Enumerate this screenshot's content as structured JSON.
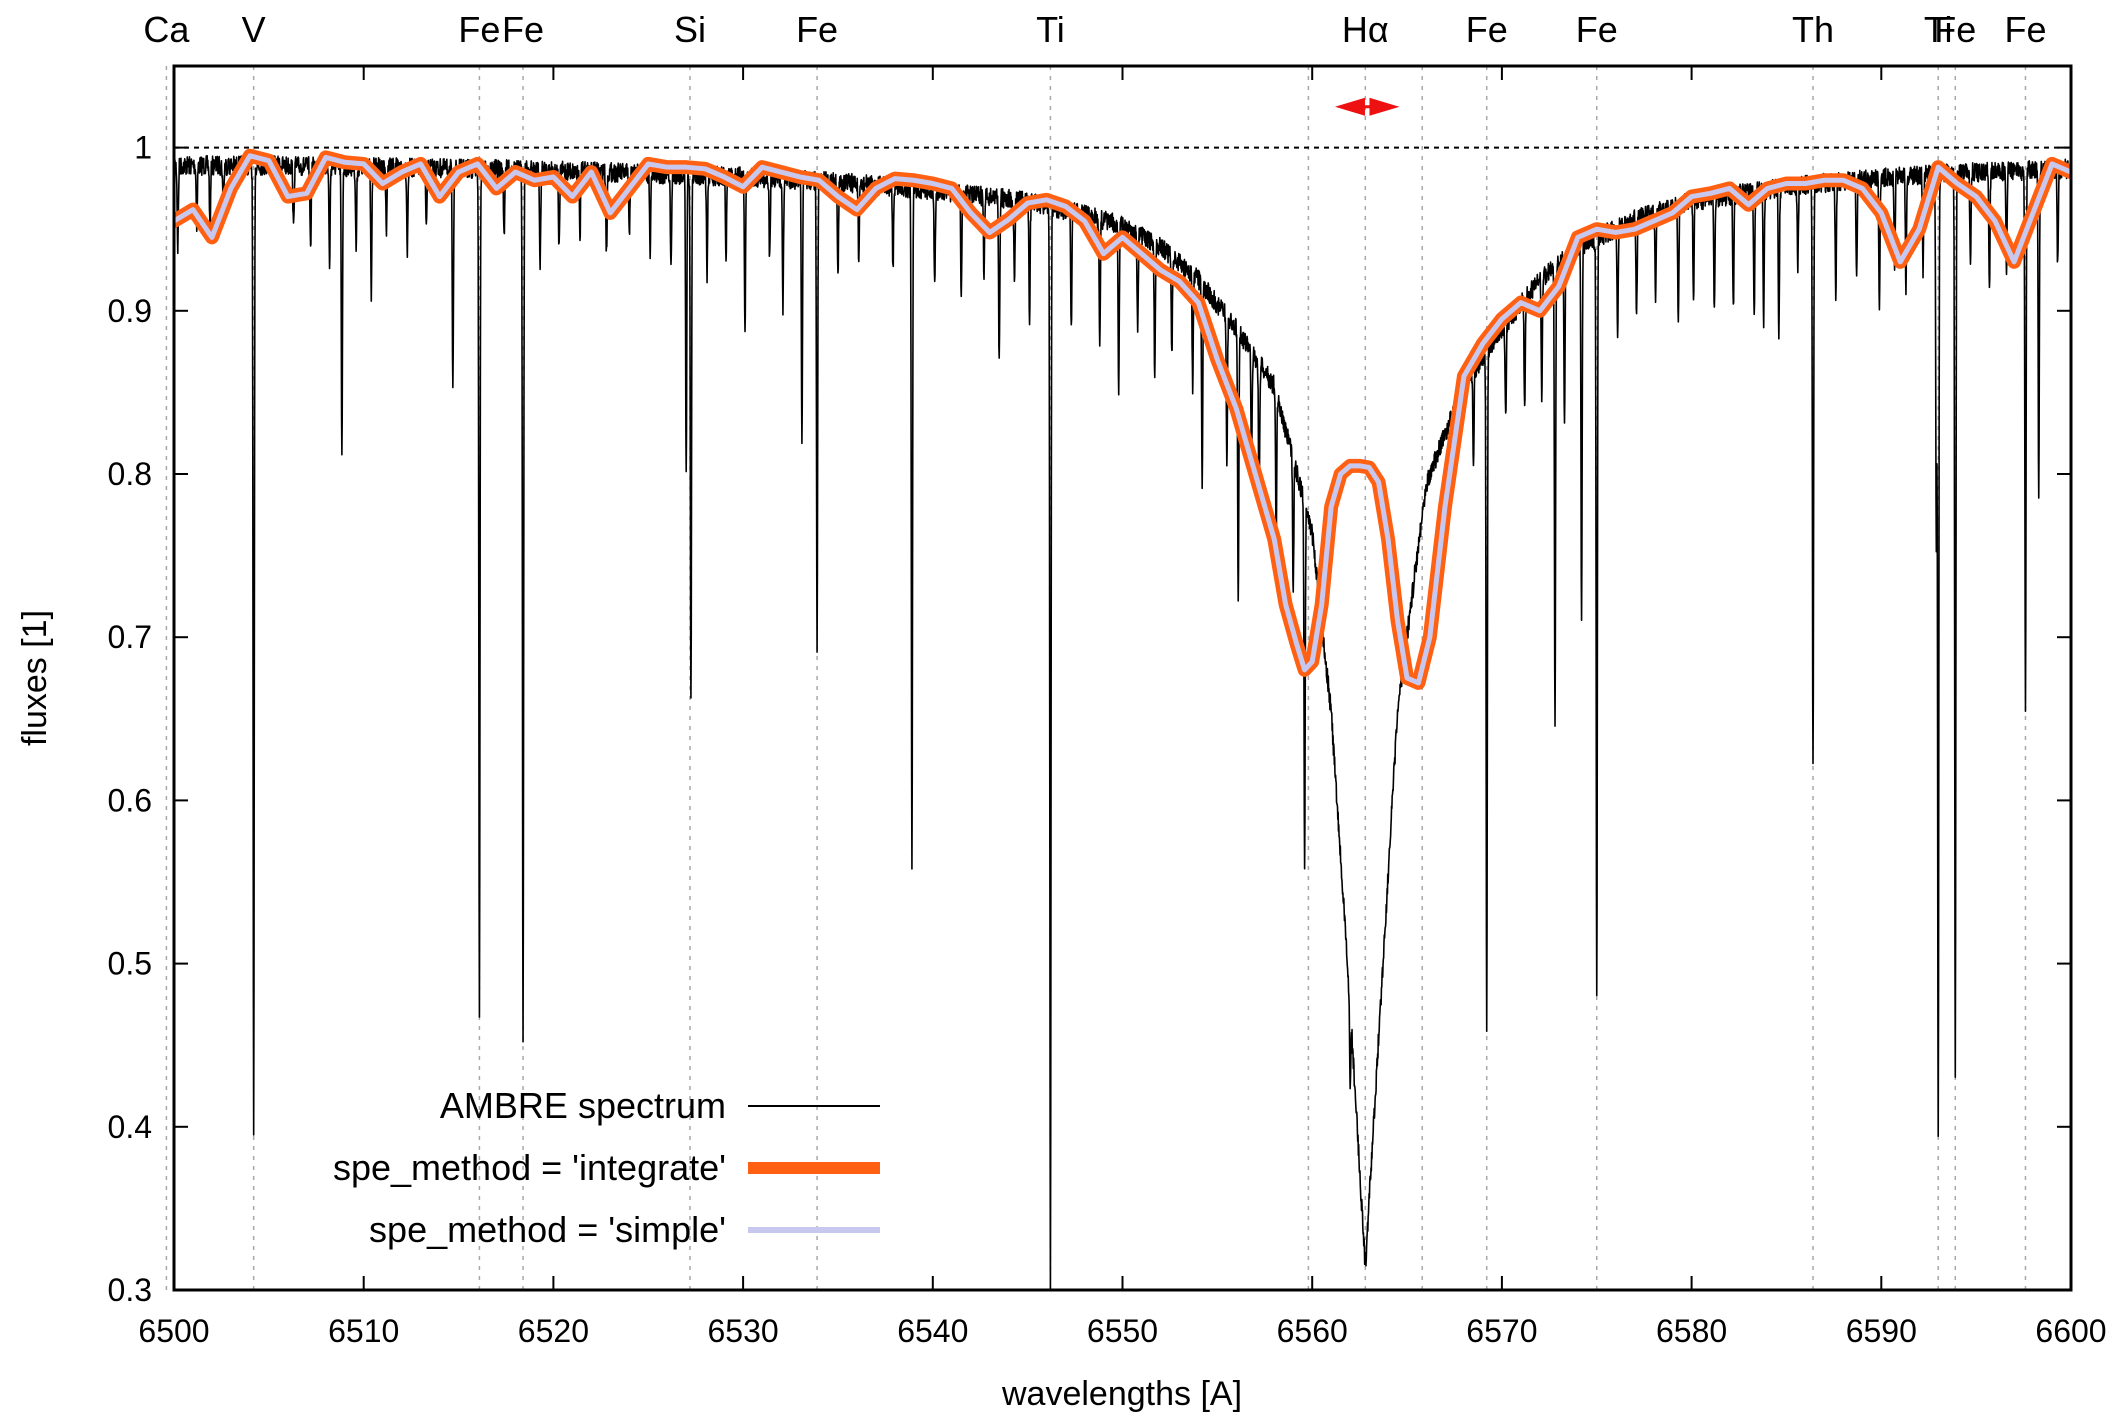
{
  "chart_data": {
    "type": "line",
    "xlabel": "wavelengths [A]",
    "ylabel": "fluxes [1]",
    "xlim": [
      6500,
      6600
    ],
    "ylim": [
      0.3,
      1.05
    ],
    "x_ticks": [
      "6500",
      "6510",
      "6520",
      "6530",
      "6540",
      "6550",
      "6560",
      "6570",
      "6580",
      "6590",
      "6600"
    ],
    "y_ticks": [
      "0.3",
      "0.4",
      "0.5",
      "0.6",
      "0.7",
      "0.8",
      "0.9",
      "1"
    ],
    "continuum_level": 1.0,
    "legend_position": "bottom-left",
    "element_lines": [
      {
        "label": "Ca",
        "wavelength": 6499.6
      },
      {
        "label": "V",
        "wavelength": 6504.2
      },
      {
        "label": "Fe",
        "wavelength": 6516.1
      },
      {
        "label": "Fe",
        "wavelength": 6518.4
      },
      {
        "label": "Si",
        "wavelength": 6527.2
      },
      {
        "label": "Fe",
        "wavelength": 6533.9
      },
      {
        "label": "Ti",
        "wavelength": 6546.2
      },
      {
        "label": "Hα",
        "wavelength": 6562.8
      },
      {
        "label": "Fe",
        "wavelength": 6569.2
      },
      {
        "label": "Fe",
        "wavelength": 6575.0
      },
      {
        "label": "Th",
        "wavelength": 6586.4
      },
      {
        "label": "Ti",
        "wavelength": 6593.0
      },
      {
        "label": "Fe",
        "wavelength": 6593.9
      },
      {
        "label": "Fe",
        "wavelength": 6597.6
      }
    ],
    "extra_guides": [
      6559.8,
      6565.8
    ],
    "annotation_arrow": {
      "from": 6561.2,
      "to": 6564.6,
      "y": 1.025,
      "color": "#ee1111"
    },
    "series": [
      {
        "name": "AMBRE spectrum",
        "color": "#000000",
        "wing_width": 19,
        "x": [
          6500,
          6505,
          6510,
          6515,
          6520,
          6525,
          6530,
          6535,
          6540,
          6545,
          6548,
          6550,
          6552,
          6554,
          6556,
          6558,
          6560,
          6561,
          6562,
          6562.8,
          6563.5,
          6564.5,
          6566,
          6568,
          6570,
          6572,
          6574,
          6577,
          6580,
          6585,
          6590,
          6595,
          6600
        ],
        "y": [
          0.995,
          0.995,
          0.994,
          0.993,
          0.992,
          0.99,
          0.988,
          0.985,
          0.98,
          0.973,
          0.965,
          0.958,
          0.945,
          0.925,
          0.895,
          0.86,
          0.77,
          0.66,
          0.48,
          0.32,
          0.46,
          0.66,
          0.8,
          0.86,
          0.895,
          0.925,
          0.945,
          0.962,
          0.973,
          0.982,
          0.988,
          0.991,
          0.993
        ],
        "absorption_lines": [
          [
            6500.2,
            0.05
          ],
          [
            6501.2,
            0.035
          ],
          [
            6501.9,
            0.04
          ],
          [
            6502.6,
            0.03
          ],
          [
            6504.2,
            0.595
          ],
          [
            6506.3,
            0.04
          ],
          [
            6507.2,
            0.05
          ],
          [
            6508.2,
            0.06
          ],
          [
            6508.85,
            0.18
          ],
          [
            6509.6,
            0.05
          ],
          [
            6510.4,
            0.08
          ],
          [
            6511.2,
            0.04
          ],
          [
            6512.3,
            0.05
          ],
          [
            6513.3,
            0.04
          ],
          [
            6514.7,
            0.14
          ],
          [
            6516.1,
            0.515
          ],
          [
            6517.4,
            0.04
          ],
          [
            6518.4,
            0.53
          ],
          [
            6519.3,
            0.06
          ],
          [
            6520.3,
            0.05
          ],
          [
            6521.4,
            0.04
          ],
          [
            6522.8,
            0.05
          ],
          [
            6524.0,
            0.04
          ],
          [
            6525.1,
            0.05
          ],
          [
            6526.2,
            0.06
          ],
          [
            6527.0,
            0.18
          ],
          [
            6527.25,
            0.325
          ],
          [
            6528.1,
            0.06
          ],
          [
            6529.1,
            0.05
          ],
          [
            6530.1,
            0.095
          ],
          [
            6531.4,
            0.05
          ],
          [
            6532.1,
            0.08
          ],
          [
            6533.1,
            0.16
          ],
          [
            6533.9,
            0.285
          ],
          [
            6535.0,
            0.06
          ],
          [
            6536.1,
            0.05
          ],
          [
            6537.9,
            0.05
          ],
          [
            6538.9,
            0.415
          ],
          [
            6540.1,
            0.06
          ],
          [
            6541.5,
            0.06
          ],
          [
            6542.7,
            0.05
          ],
          [
            6543.5,
            0.1
          ],
          [
            6544.3,
            0.05
          ],
          [
            6545.1,
            0.07
          ],
          [
            6546.2,
            0.66
          ],
          [
            6547.3,
            0.07
          ],
          [
            6548.8,
            0.08
          ],
          [
            6549.8,
            0.1
          ],
          [
            6550.8,
            0.06
          ],
          [
            6551.7,
            0.08
          ],
          [
            6552.6,
            0.06
          ],
          [
            6553.7,
            0.07
          ],
          [
            6554.2,
            0.12
          ],
          [
            6555.5,
            0.09
          ],
          [
            6556.1,
            0.17
          ],
          [
            6556.8,
            0.07
          ],
          [
            6557.2,
            0.09
          ],
          [
            6558.1,
            0.09
          ],
          [
            6559.0,
            0.08
          ],
          [
            6559.6,
            0.22
          ],
          [
            6562.0,
            0.05
          ],
          [
            6567.5,
            0.05
          ],
          [
            6568.5,
            0.06
          ],
          [
            6569.2,
            0.42
          ],
          [
            6570.2,
            0.06
          ],
          [
            6571.2,
            0.07
          ],
          [
            6572.1,
            0.07
          ],
          [
            6572.8,
            0.28
          ],
          [
            6573.3,
            0.1
          ],
          [
            6574.2,
            0.23
          ],
          [
            6575.0,
            0.47
          ],
          [
            6576.1,
            0.07
          ],
          [
            6577.1,
            0.06
          ],
          [
            6578.1,
            0.05
          ],
          [
            6579.3,
            0.07
          ],
          [
            6580.1,
            0.06
          ],
          [
            6581.2,
            0.07
          ],
          [
            6582.2,
            0.07
          ],
          [
            6583.3,
            0.08
          ],
          [
            6583.8,
            0.08
          ],
          [
            6584.6,
            0.09
          ],
          [
            6585.6,
            0.05
          ],
          [
            6586.4,
            0.36
          ],
          [
            6587.6,
            0.07
          ],
          [
            6588.7,
            0.06
          ],
          [
            6589.9,
            0.08
          ],
          [
            6590.7,
            0.06
          ],
          [
            6591.3,
            0.07
          ],
          [
            6592.2,
            0.06
          ],
          [
            6592.9,
            0.23
          ],
          [
            6593.0,
            0.59
          ],
          [
            6593.9,
            0.55
          ],
          [
            6594.7,
            0.06
          ],
          [
            6595.7,
            0.07
          ],
          [
            6596.6,
            0.06
          ],
          [
            6597.6,
            0.33
          ],
          [
            6598.3,
            0.2
          ],
          [
            6599.3,
            0.06
          ]
        ]
      },
      {
        "name": "spe_method = 'integrate'",
        "color": "#ff6011",
        "x": [
          6500,
          6501,
          6502,
          6503,
          6504,
          6505,
          6506,
          6507,
          6508,
          6509,
          6510,
          6511,
          6512,
          6513,
          6514,
          6515,
          6516,
          6517,
          6518,
          6519,
          6520,
          6521,
          6522,
          6523,
          6524,
          6525,
          6526,
          6527,
          6528,
          6529,
          6530,
          6531,
          6532,
          6533,
          6534,
          6535,
          6536,
          6537,
          6538,
          6539,
          6540,
          6541,
          6542,
          6543,
          6544,
          6545,
          6546,
          6547,
          6548,
          6549,
          6550,
          6551,
          6552,
          6553,
          6554,
          6555,
          6556,
          6557,
          6558,
          6558.6,
          6559.2,
          6559.6,
          6560,
          6560.5,
          6561,
          6561.5,
          6562,
          6562.5,
          6563,
          6563.5,
          6564,
          6564.5,
          6565,
          6565.6,
          6566.2,
          6567,
          6568,
          6569,
          6570,
          6571,
          6572,
          6573,
          6574,
          6575,
          6576,
          6577,
          6578,
          6579,
          6580,
          6581,
          6582,
          6583,
          6584,
          6585,
          6586,
          6587,
          6588,
          6589,
          6590,
          6591,
          6592,
          6593,
          6594,
          6595,
          6596,
          6597,
          6598,
          6599,
          6600
        ],
        "y": [
          0.955,
          0.962,
          0.945,
          0.975,
          0.995,
          0.992,
          0.97,
          0.972,
          0.994,
          0.991,
          0.99,
          0.978,
          0.985,
          0.99,
          0.97,
          0.985,
          0.99,
          0.975,
          0.985,
          0.98,
          0.982,
          0.97,
          0.985,
          0.96,
          0.975,
          0.99,
          0.988,
          0.988,
          0.987,
          0.982,
          0.976,
          0.988,
          0.985,
          0.982,
          0.98,
          0.97,
          0.962,
          0.975,
          0.981,
          0.98,
          0.978,
          0.975,
          0.96,
          0.948,
          0.956,
          0.966,
          0.968,
          0.964,
          0.955,
          0.935,
          0.945,
          0.935,
          0.925,
          0.918,
          0.905,
          0.87,
          0.84,
          0.8,
          0.76,
          0.72,
          0.695,
          0.68,
          0.685,
          0.72,
          0.78,
          0.8,
          0.805,
          0.805,
          0.804,
          0.795,
          0.76,
          0.71,
          0.675,
          0.672,
          0.7,
          0.78,
          0.86,
          0.88,
          0.895,
          0.905,
          0.9,
          0.915,
          0.945,
          0.95,
          0.948,
          0.95,
          0.955,
          0.96,
          0.97,
          0.972,
          0.975,
          0.965,
          0.975,
          0.978,
          0.978,
          0.98,
          0.98,
          0.975,
          0.96,
          0.93,
          0.95,
          0.988,
          0.978,
          0.97,
          0.955,
          0.93,
          0.96,
          0.99,
          0.985
        ]
      },
      {
        "name": "spe_method = 'simple'",
        "color": "#c8c8ee",
        "same_as": "spe_method = 'integrate'"
      }
    ]
  }
}
